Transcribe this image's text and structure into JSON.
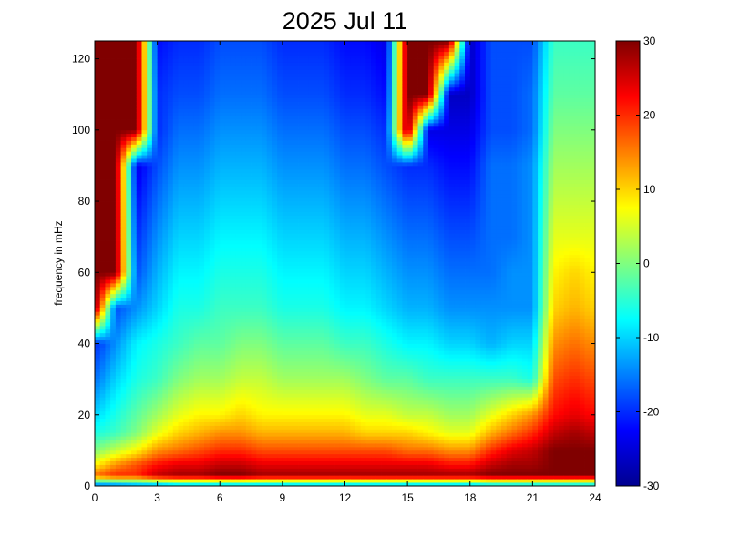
{
  "chart_data": {
    "type": "heatmap",
    "title": "2025 Jul 11",
    "xlabel": "",
    "ylabel": "frequency in mHz",
    "xlim": [
      0,
      24
    ],
    "ylim": [
      0,
      125
    ],
    "x_ticks": [
      "0",
      "3",
      "6",
      "9",
      "12",
      "15",
      "18",
      "21",
      "24"
    ],
    "y_ticks": [
      "0",
      "20",
      "40",
      "60",
      "80",
      "100",
      "120"
    ],
    "colormap": "jet",
    "colorbar": {
      "range": [
        -30,
        30
      ],
      "ticks": [
        "30",
        "20",
        "10",
        "0",
        "-10",
        "-20",
        "-30"
      ]
    },
    "time_columns_hours": [
      0,
      1,
      2,
      3,
      4,
      5,
      6,
      7,
      8,
      9,
      10,
      11,
      12,
      13,
      14,
      15,
      16,
      17,
      18,
      19,
      20,
      21,
      22,
      23,
      24
    ],
    "frequency_rows_mHz": [
      0,
      3,
      6,
      10,
      15,
      20,
      30,
      40,
      50,
      60,
      70,
      80,
      90,
      100,
      110,
      125
    ],
    "values_dB": [
      [
        -18,
        -18,
        -16,
        -16,
        -14,
        -14,
        -14,
        -14,
        -14,
        -14,
        -14,
        -14,
        -14,
        -14,
        -14,
        -14,
        -14,
        -14,
        -14,
        -12,
        -12,
        -12,
        -12,
        -12,
        -12
      ],
      [
        16,
        20,
        20,
        26,
        28,
        28,
        30,
        30,
        28,
        28,
        28,
        28,
        28,
        28,
        28,
        28,
        28,
        28,
        28,
        30,
        30,
        30,
        30,
        30,
        30
      ],
      [
        8,
        14,
        18,
        22,
        24,
        24,
        26,
        26,
        24,
        24,
        24,
        24,
        24,
        24,
        24,
        24,
        24,
        22,
        22,
        26,
        28,
        28,
        30,
        30,
        30
      ],
      [
        0,
        4,
        8,
        14,
        16,
        18,
        20,
        20,
        18,
        18,
        18,
        18,
        18,
        18,
        18,
        16,
        16,
        14,
        14,
        20,
        24,
        26,
        30,
        30,
        30
      ],
      [
        -6,
        -4,
        0,
        6,
        10,
        12,
        14,
        14,
        12,
        12,
        12,
        12,
        12,
        10,
        10,
        10,
        8,
        6,
        6,
        12,
        16,
        20,
        26,
        28,
        26
      ],
      [
        -10,
        -6,
        -2,
        2,
        6,
        8,
        8,
        10,
        8,
        8,
        8,
        8,
        8,
        6,
        6,
        4,
        4,
        2,
        2,
        6,
        10,
        14,
        22,
        24,
        22
      ],
      [
        -16,
        -10,
        -6,
        -4,
        0,
        2,
        2,
        4,
        4,
        2,
        2,
        2,
        2,
        0,
        -2,
        -2,
        -4,
        -4,
        -4,
        -4,
        -4,
        -6,
        18,
        20,
        18
      ],
      [
        -20,
        -14,
        -8,
        -6,
        -4,
        -2,
        -2,
        0,
        0,
        -2,
        -2,
        -2,
        -4,
        -4,
        -6,
        -8,
        -8,
        -10,
        -10,
        -12,
        -10,
        -10,
        14,
        16,
        14
      ],
      [
        30,
        -18,
        -14,
        -10,
        -6,
        -6,
        -4,
        -4,
        -4,
        -6,
        -6,
        -6,
        -8,
        -8,
        -10,
        -12,
        -12,
        -14,
        -14,
        -14,
        -14,
        -14,
        10,
        12,
        10
      ],
      [
        30,
        30,
        -18,
        -12,
        -8,
        -8,
        -6,
        -6,
        -6,
        -8,
        -8,
        -8,
        -10,
        -10,
        -12,
        -14,
        -14,
        -16,
        -16,
        -16,
        -14,
        -14,
        8,
        10,
        8
      ],
      [
        30,
        30,
        -20,
        -14,
        -10,
        -10,
        -8,
        -8,
        -8,
        -10,
        -10,
        -10,
        -12,
        -12,
        -14,
        -16,
        -16,
        -18,
        -18,
        -16,
        -16,
        -14,
        6,
        6,
        6
      ],
      [
        30,
        30,
        -22,
        -16,
        -12,
        -12,
        -10,
        -10,
        -10,
        -12,
        -12,
        -12,
        -14,
        -14,
        -16,
        -18,
        -18,
        -20,
        -20,
        -16,
        -16,
        -14,
        4,
        4,
        4
      ],
      [
        30,
        30,
        -24,
        -18,
        -14,
        -14,
        -12,
        -12,
        -12,
        -14,
        -14,
        -14,
        -16,
        -16,
        -18,
        -20,
        -20,
        -22,
        -22,
        -16,
        -16,
        -14,
        2,
        2,
        2
      ],
      [
        30,
        30,
        30,
        -20,
        -16,
        -16,
        -14,
        -14,
        -14,
        -16,
        -16,
        -16,
        -18,
        -18,
        -20,
        30,
        -24,
        -24,
        -24,
        -18,
        -18,
        -16,
        0,
        0,
        0
      ],
      [
        30,
        30,
        30,
        -20,
        -18,
        -18,
        -16,
        -16,
        -16,
        -18,
        -18,
        -18,
        -20,
        -20,
        -22,
        30,
        30,
        -26,
        -26,
        -18,
        -18,
        -16,
        -2,
        -2,
        -2
      ],
      [
        30,
        30,
        30,
        -22,
        -20,
        -20,
        -18,
        -18,
        -18,
        -20,
        -20,
        -20,
        -22,
        -22,
        -24,
        30,
        30,
        30,
        -26,
        -18,
        -18,
        -18,
        -4,
        -4,
        -4
      ]
    ]
  }
}
